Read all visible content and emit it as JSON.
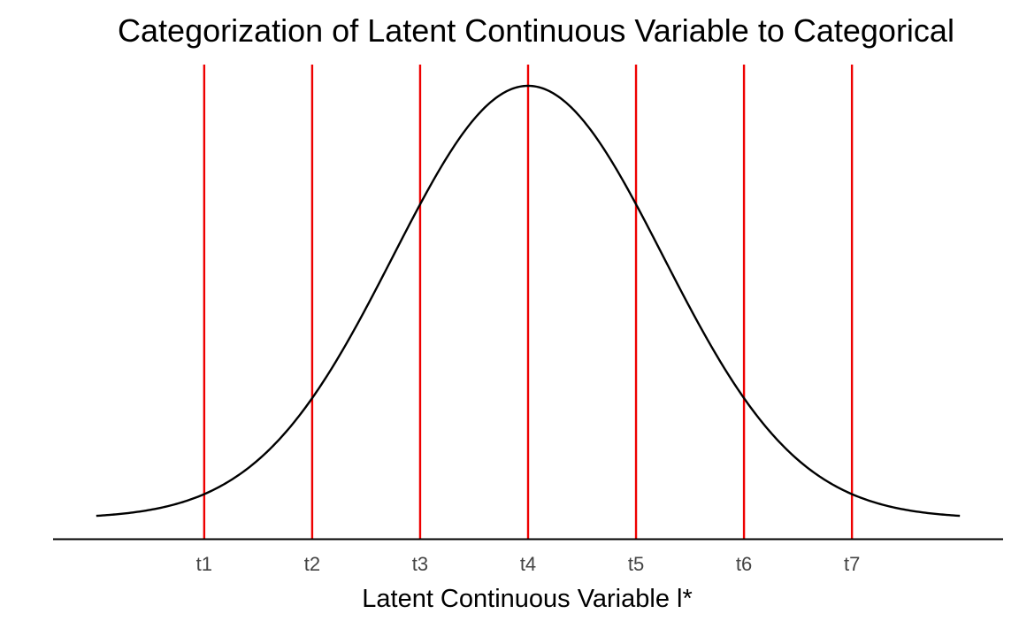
{
  "chart_data": {
    "type": "line",
    "title": "Categorization of Latent Continuous Variable to Categorical",
    "xlabel": "Latent Continuous Variable l*",
    "ylabel": "",
    "series": [
      {
        "name": "",
        "distribution": "normal",
        "mean": 0,
        "sd": 1,
        "x_range": [
          -3.2,
          3.2
        ]
      }
    ],
    "thresholds": [
      {
        "label": "t1",
        "x": -2.4
      },
      {
        "label": "t2",
        "x": -1.6
      },
      {
        "label": "t3",
        "x": -0.8
      },
      {
        "label": "t4",
        "x": 0
      },
      {
        "label": "t5",
        "x": 0.8
      },
      {
        "label": "t6",
        "x": 1.6
      },
      {
        "label": "t7",
        "x": 2.4
      }
    ],
    "xlim": [
      -3.52,
      3.52
    ],
    "grid": false,
    "legend": "none",
    "colors": {
      "curve": "#000000",
      "threshold": "#ee0000",
      "axis": "#000000"
    }
  }
}
